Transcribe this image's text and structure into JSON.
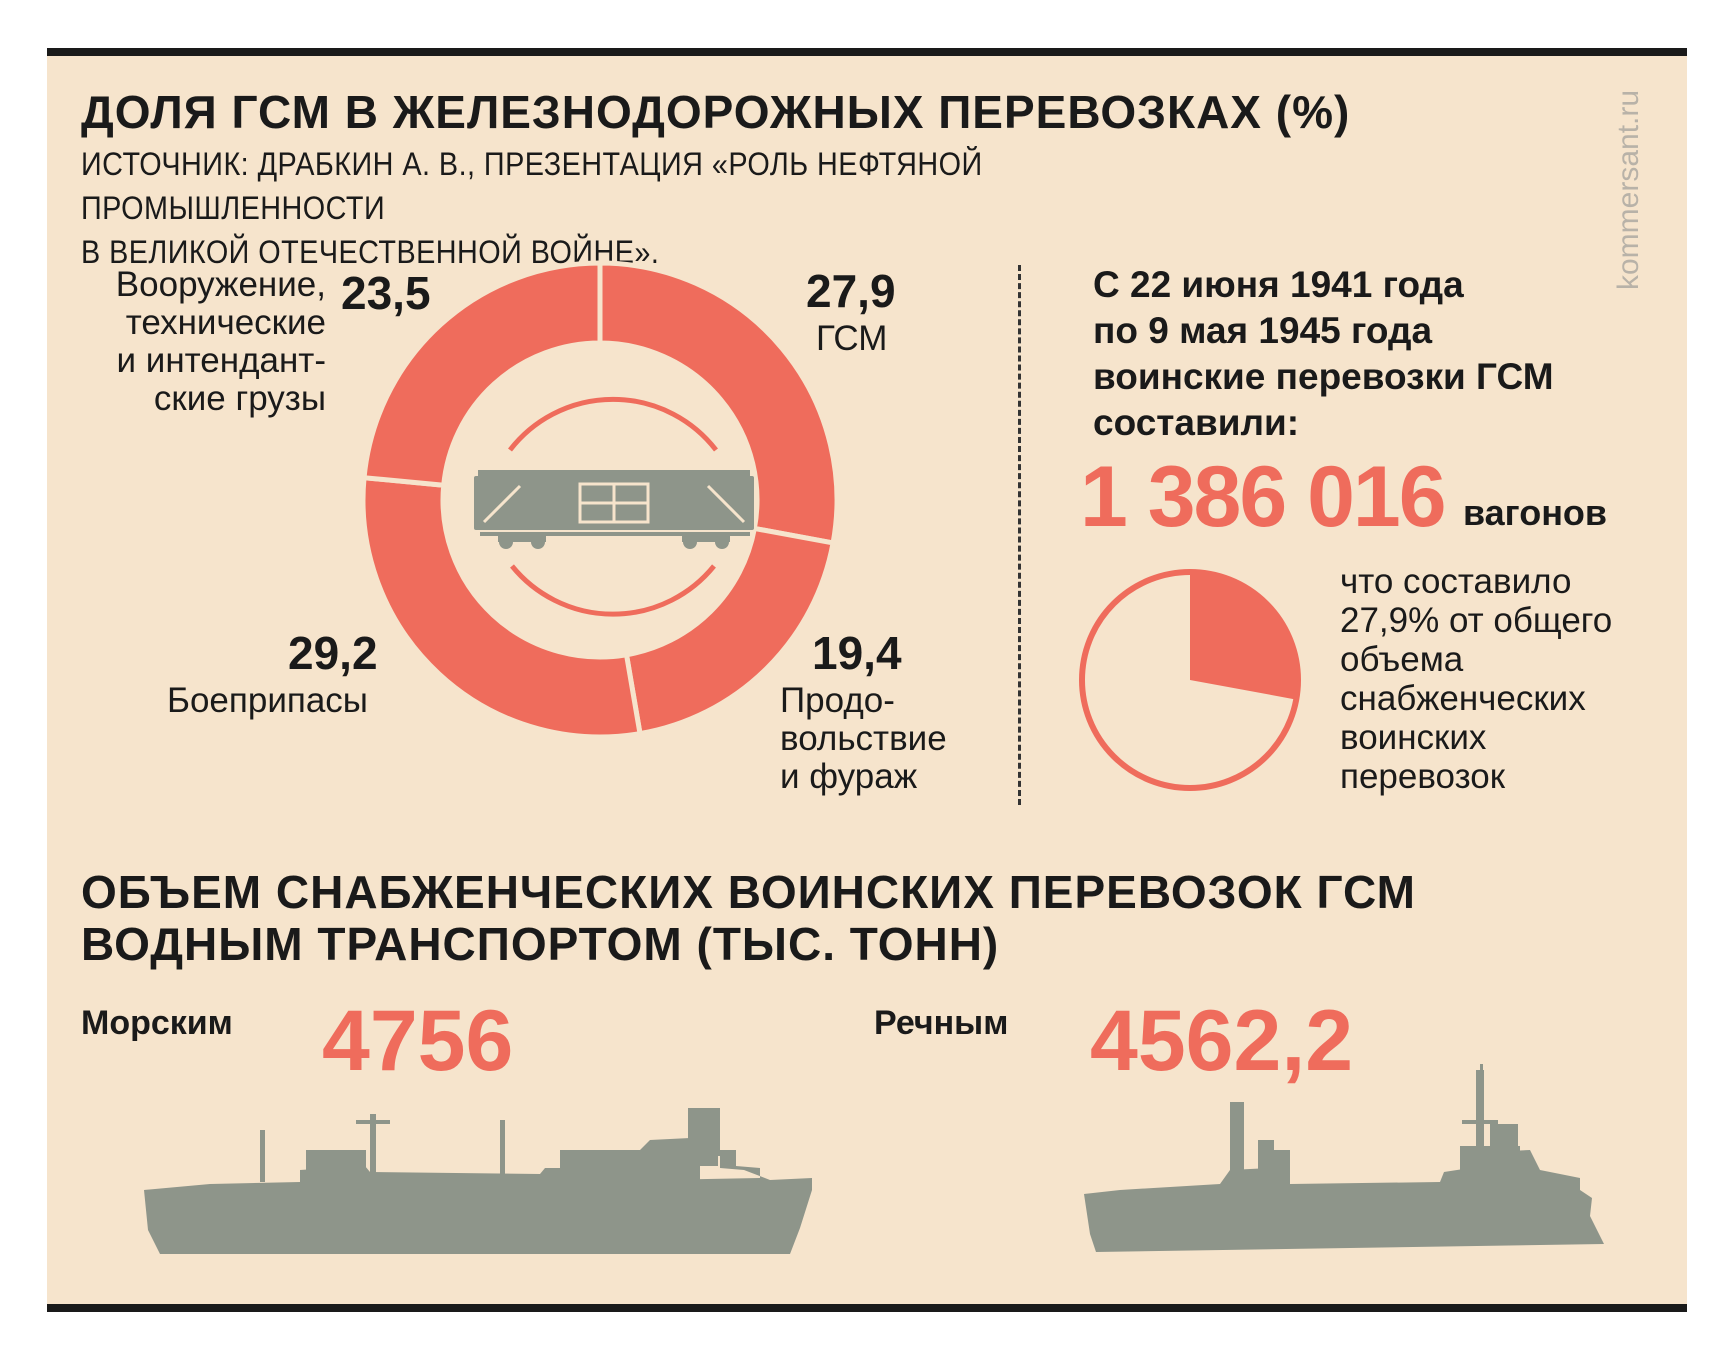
{
  "rail": {
    "title": "ДОЛЯ ГСМ В ЖЕЛЕЗНОДОРОЖНЫХ ПЕРЕВОЗКАХ (%)",
    "source_line1": "ИСТОЧНИК: ДРАБКИН А. В., ПРЕЗЕНТАЦИЯ «РОЛЬ НЕФТЯНОЙ ПРОМЫШЛЕННОСТИ",
    "source_line2": "В ВЕЛИКОЙ ОТЕЧЕСТВЕННОЙ ВОЙНЕ».",
    "watermark": "kommersant.ru"
  },
  "chart_data": {
    "type": "pie",
    "title": "ДОЛЯ ГСМ В ЖЕЛЕЗНОДОРОЖНЫХ ПЕРЕВОЗКАХ (%)",
    "slices": [
      {
        "value": 27.9,
        "value_text": "27,9",
        "label": "ГСМ"
      },
      {
        "value": 19.4,
        "value_text": "19,4",
        "label_lines": [
          "Продо-",
          "вольствие",
          "и фураж"
        ]
      },
      {
        "value": 29.2,
        "value_text": "29,2",
        "label": "Боеприпасы"
      },
      {
        "value": 23.5,
        "value_text": "23,5",
        "label_lines": [
          "Вооружение,",
          "технические",
          "и интендант-",
          "ские грузы"
        ]
      }
    ],
    "color": "#ef6c5c"
  },
  "total": {
    "statement_lines": [
      "С 22 июня 1941 года",
      "по 9 мая 1945 года",
      "воинские перевозки ГСМ",
      "составили:"
    ],
    "value": "1 386 016",
    "unit": "вагонов",
    "share_percent": 27.9,
    "share_lines": [
      "что составило",
      "27,9% от общего",
      "объема",
      "снабженческих",
      "воинских",
      "перевозок"
    ]
  },
  "water": {
    "title_line1": "ОБЪЕМ СНАБЖЕНЧЕСКИХ ВОИНСКИХ ПЕРЕВОЗОК ГСМ",
    "title_line2": "ВОДНЫМ ТРАНСПОРТОМ  (ТЫС. ТОНН)",
    "items": [
      {
        "label": "Морским",
        "value": "4756"
      },
      {
        "label": "Речным",
        "value": "4562,2"
      }
    ]
  },
  "colors": {
    "accent": "#ef6c5c",
    "background": "#f6e4cc",
    "silhouette": "#8e958a",
    "text": "#1a1a1a"
  }
}
